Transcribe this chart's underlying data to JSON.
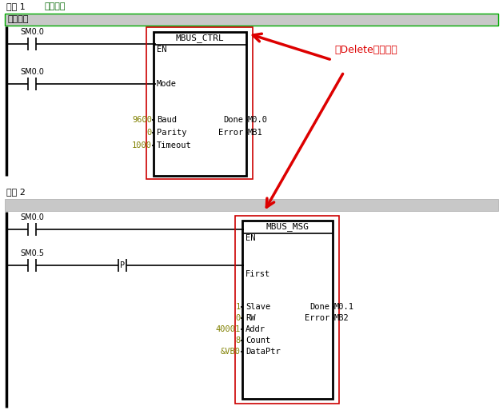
{
  "bg_color": "#ffffff",
  "fig_width": 6.29,
  "fig_height": 5.13,
  "dpi": 100,
  "network1_label": "网络 1",
  "network1_title": "网络标题",
  "network1_comment": "网络注释",
  "network2_label": "网络 2",
  "sm00_1_label": "SM0.0",
  "sm00_2_label": "SM0.0",
  "sm00_3_label": "SM0.0",
  "sm05_label": "SM0.5",
  "p_label": "P",
  "mbus_ctrl_title": "MBUS_CTRL",
  "mbus_ctrl_en": "EN",
  "mbus_ctrl_mode": "Mode",
  "mbus_ctrl_baud": "Baud",
  "mbus_ctrl_parity": "Parity",
  "mbus_ctrl_timeout": "Timeout",
  "mbus_ctrl_done": "Done",
  "mbus_ctrl_error": "Error",
  "mbus_ctrl_done_val": "M0.0",
  "mbus_ctrl_error_val": "MB1",
  "mbus_ctrl_baud_val": "9600",
  "mbus_ctrl_parity_val": "0",
  "mbus_ctrl_timeout_val": "1000",
  "mbus_msg_title": "MBUS_MSG",
  "mbus_msg_en": "EN",
  "mbus_msg_first": "First",
  "mbus_msg_slave": "Slave",
  "mbus_msg_rw": "RW",
  "mbus_msg_addr": "Addr",
  "mbus_msg_count": "Count",
  "mbus_msg_dataptr": "DataPtr",
  "mbus_msg_done": "Done",
  "mbus_msg_error": "Error",
  "mbus_msg_done_val": "M0.1",
  "mbus_msg_error_val": "MB2",
  "mbus_msg_slave_val": "1",
  "mbus_msg_rw_val": "0",
  "mbus_msg_addr_val": "40001",
  "mbus_msg_count_val": "8",
  "mbus_msg_dataptr_val": "&VB0",
  "annotation_text": "按Delete删除指令",
  "annotation_color": "#dd0000",
  "label_color_green": "#006600",
  "label_color_black": "#000000",
  "label_color_olive": "#808000",
  "box_border_black": "#000000",
  "box_border_red": "#cc0000",
  "comment_bg": "#c8c8c8",
  "line_color": "#000000"
}
